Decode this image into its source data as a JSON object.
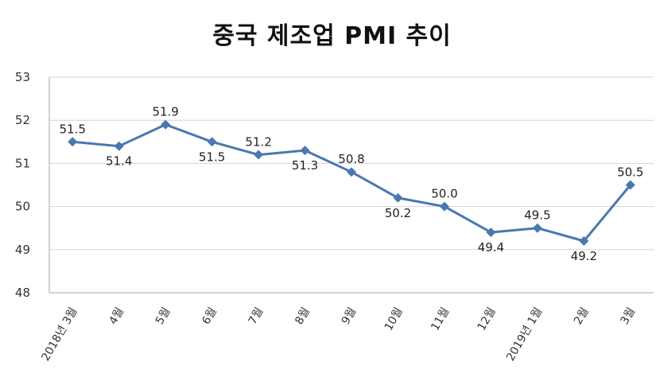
{
  "chart_data": {
    "type": "line",
    "title": "중국 제조업 PMI 추이",
    "categories": [
      "2018년 3월",
      "4월",
      "5월",
      "6월",
      "7월",
      "8월",
      "9월",
      "10월",
      "11월",
      "12월",
      "2019년 1월",
      "2월",
      "3월"
    ],
    "series": [
      {
        "values": [
          51.5,
          51.4,
          51.9,
          51.5,
          51.2,
          51.3,
          50.8,
          50.2,
          50.0,
          49.4,
          49.5,
          49.2,
          50.5
        ]
      }
    ],
    "data_labels": [
      "51.5",
      "51.4",
      "51.9",
      "51.5",
      "51.2",
      "51.3",
      "50.8",
      "50.2",
      "50.0",
      "49.4",
      "49.5",
      "49.2",
      "50.5"
    ],
    "data_label_positions": [
      "above",
      "below",
      "above",
      "below",
      "above",
      "below",
      "above",
      "below",
      "above",
      "below",
      "above",
      "below",
      "above"
    ],
    "ylim": [
      48,
      53
    ],
    "yticks": [
      "48",
      "49",
      "50",
      "51",
      "52",
      "53"
    ],
    "grid": true,
    "line_color": "#4a78b0",
    "grid_color": "#d4d4d4",
    "axis_color": "#a6a6a6"
  }
}
